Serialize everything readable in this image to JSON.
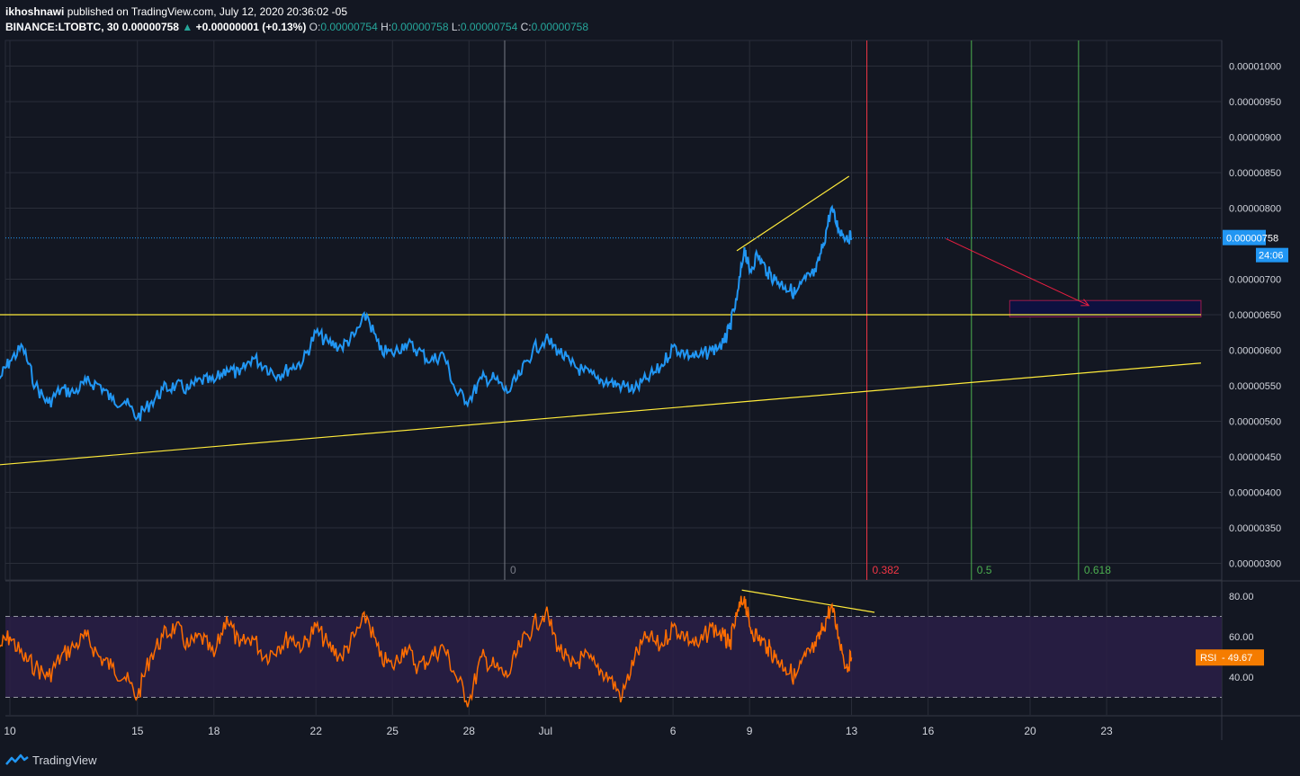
{
  "header": {
    "author": "ikhoshnawi",
    "published": "published on TradingView.com, July 12, 2020 20:36:02 -05",
    "symbol": "BINANCE:LTOBTC, 30",
    "last": "0.00000758",
    "change": "+0.00000001 (+0.13%)",
    "o_label": "O:",
    "o_value": "0.00000754",
    "h_label": "H:",
    "h_value": "0.00000758",
    "l_label": "L:",
    "l_value": "0.00000754",
    "c_label": "C:",
    "c_value": "0.00000758"
  },
  "footer": {
    "brand": "TradingView"
  },
  "colors": {
    "background": "#131722",
    "grid": "#2a2e39",
    "price_line": "#2196f3",
    "rsi_line": "#ff6d00",
    "trend_lines": "#ffeb3b",
    "fib_0": "#787b86",
    "fib_0382": "#f23645",
    "fib_05": "#4caf50",
    "fib_0618": "#4caf50",
    "rsi_band": "#2a1e46",
    "target_box": "#0d1140",
    "target_border": "#9c1a4b",
    "arrow": "#e91e41",
    "label_bg": "#2196f3",
    "rsi_label_bg": "#f57c00"
  },
  "chart_data": {
    "type": "line",
    "price_axis": {
      "ticks": [
        "0.00001000",
        "0.00000950",
        "0.00000900",
        "0.00000850",
        "0.00000800",
        "0.00000700",
        "0.00000650",
        "0.00000600",
        "0.00000550",
        "0.00000500",
        "0.00000450",
        "0.00000400",
        "0.00000350",
        "0.00000300"
      ],
      "current_label": "0.00000758",
      "countdown": "24:06"
    },
    "time_axis": {
      "ticks": [
        {
          "label": "10",
          "day": 10
        },
        {
          "label": "15",
          "day": 15
        },
        {
          "label": "18",
          "day": 18
        },
        {
          "label": "22",
          "day": 22
        },
        {
          "label": "25",
          "day": 25
        },
        {
          "label": "28",
          "day": 28
        },
        {
          "label": "Jul",
          "day": 31
        },
        {
          "label": "6",
          "day": 36
        },
        {
          "label": "9",
          "day": 39
        },
        {
          "label": "13",
          "day": 43
        },
        {
          "label": "16",
          "day": 46
        },
        {
          "label": "20",
          "day": 50
        },
        {
          "label": "23",
          "day": 53
        }
      ]
    },
    "price_series": {
      "name": "LTOBTC",
      "unit": "1e-8 BTC",
      "points": [
        [
          9.6,
          560
        ],
        [
          10.0,
          585
        ],
        [
          10.5,
          605
        ],
        [
          11.0,
          550
        ],
        [
          11.5,
          525
        ],
        [
          12.0,
          545
        ],
        [
          12.5,
          540
        ],
        [
          13.0,
          555
        ],
        [
          13.5,
          552
        ],
        [
          14.0,
          530
        ],
        [
          14.5,
          528
        ],
        [
          15.0,
          505
        ],
        [
          15.5,
          525
        ],
        [
          16.0,
          545
        ],
        [
          16.5,
          550
        ],
        [
          17.0,
          545
        ],
        [
          17.5,
          558
        ],
        [
          18.0,
          555
        ],
        [
          18.5,
          575
        ],
        [
          19.0,
          565
        ],
        [
          19.5,
          590
        ],
        [
          20.0,
          578
        ],
        [
          20.5,
          565
        ],
        [
          21.0,
          575
        ],
        [
          21.5,
          585
        ],
        [
          22.0,
          625
        ],
        [
          22.5,
          610
        ],
        [
          23.0,
          605
        ],
        [
          23.5,
          620
        ],
        [
          24.0,
          650
        ],
        [
          24.5,
          600
        ],
        [
          25.0,
          595
        ],
        [
          25.5,
          610
        ],
        [
          26.0,
          600
        ],
        [
          26.5,
          585
        ],
        [
          27.0,
          595
        ],
        [
          27.5,
          540
        ],
        [
          28.0,
          530
        ],
        [
          28.5,
          560
        ],
        [
          29.0,
          560
        ],
        [
          29.5,
          540
        ],
        [
          30.0,
          565
        ],
        [
          30.5,
          600
        ],
        [
          31.0,
          615
        ],
        [
          31.5,
          600
        ],
        [
          32.0,
          580
        ],
        [
          32.5,
          570
        ],
        [
          33.0,
          560
        ],
        [
          33.5,
          555
        ],
        [
          34.0,
          550
        ],
        [
          34.5,
          545
        ],
        [
          35.0,
          560
        ],
        [
          35.5,
          575
        ],
        [
          36.0,
          605
        ],
        [
          36.5,
          595
        ],
        [
          37.0,
          590
        ],
        [
          37.5,
          600
        ],
        [
          38.0,
          610
        ],
        [
          38.2,
          630
        ],
        [
          38.5,
          670
        ],
        [
          38.8,
          745
        ],
        [
          39.0,
          710
        ],
        [
          39.3,
          735
        ],
        [
          39.7,
          710
        ],
        [
          40.0,
          700
        ],
        [
          40.4,
          690
        ],
        [
          40.8,
          680
        ],
        [
          41.2,
          700
        ],
        [
          41.6,
          710
        ],
        [
          41.9,
          750
        ],
        [
          42.2,
          800
        ],
        [
          42.5,
          770
        ],
        [
          42.8,
          760
        ],
        [
          43.0,
          758
        ]
      ]
    },
    "rsi": {
      "label": "RSI",
      "value": "49.67",
      "axis_ticks": [
        "80.00",
        "60.00",
        "40.00"
      ],
      "upper_band": 70,
      "lower_band": 30,
      "points": [
        [
          9.6,
          55
        ],
        [
          10.0,
          60
        ],
        [
          10.5,
          50
        ],
        [
          11.0,
          45
        ],
        [
          11.5,
          40
        ],
        [
          12.0,
          50
        ],
        [
          12.5,
          55
        ],
        [
          13.0,
          60
        ],
        [
          13.5,
          50
        ],
        [
          14.0,
          45
        ],
        [
          14.5,
          40
        ],
        [
          15.0,
          30
        ],
        [
          15.5,
          50
        ],
        [
          16.0,
          60
        ],
        [
          16.5,
          65
        ],
        [
          17.0,
          55
        ],
        [
          17.5,
          60
        ],
        [
          18.0,
          50
        ],
        [
          18.5,
          70
        ],
        [
          19.0,
          55
        ],
        [
          19.5,
          60
        ],
        [
          20.0,
          50
        ],
        [
          20.5,
          55
        ],
        [
          21.0,
          60
        ],
        [
          21.5,
          55
        ],
        [
          22.0,
          65
        ],
        [
          22.5,
          55
        ],
        [
          23.0,
          50
        ],
        [
          23.5,
          60
        ],
        [
          24.0,
          70
        ],
        [
          24.5,
          50
        ],
        [
          25.0,
          45
        ],
        [
          25.5,
          55
        ],
        [
          26.0,
          45
        ],
        [
          26.5,
          50
        ],
        [
          27.0,
          55
        ],
        [
          27.5,
          40
        ],
        [
          28.0,
          28
        ],
        [
          28.5,
          50
        ],
        [
          29.0,
          45
        ],
        [
          29.5,
          40
        ],
        [
          30.0,
          55
        ],
        [
          30.5,
          65
        ],
        [
          31.0,
          72
        ],
        [
          31.5,
          55
        ],
        [
          32.0,
          45
        ],
        [
          32.5,
          50
        ],
        [
          33.0,
          45
        ],
        [
          33.5,
          40
        ],
        [
          34.0,
          30
        ],
        [
          34.5,
          50
        ],
        [
          35.0,
          60
        ],
        [
          35.5,
          55
        ],
        [
          36.0,
          65
        ],
        [
          36.5,
          60
        ],
        [
          37.0,
          55
        ],
        [
          37.5,
          65
        ],
        [
          38.0,
          60
        ],
        [
          38.2,
          55
        ],
        [
          38.5,
          70
        ],
        [
          38.8,
          80
        ],
        [
          39.0,
          65
        ],
        [
          39.3,
          60
        ],
        [
          39.7,
          55
        ],
        [
          40.0,
          50
        ],
        [
          40.4,
          45
        ],
        [
          40.8,
          40
        ],
        [
          41.2,
          50
        ],
        [
          41.6,
          55
        ],
        [
          41.9,
          65
        ],
        [
          42.2,
          75
        ],
        [
          42.5,
          60
        ],
        [
          42.8,
          45
        ],
        [
          43.0,
          49.67
        ]
      ]
    },
    "fibonacci": [
      {
        "label": "0",
        "day": 29.4
      },
      {
        "label": "0.382",
        "day": 43.6
      },
      {
        "label": "0.5",
        "day": 47.7
      },
      {
        "label": "0.618",
        "day": 51.9
      }
    ],
    "drawings": {
      "horizontal_support": [
        [
          9.0,
          650
        ],
        [
          56.7,
          650
        ]
      ],
      "ascending_trend": [
        [
          9.0,
          437
        ],
        [
          56.7,
          582
        ]
      ],
      "price_wedge": [
        [
          38.5,
          740
        ],
        [
          42.9,
          845
        ]
      ],
      "rsi_divergence": [
        [
          38.7,
          83
        ],
        [
          43.9,
          72
        ]
      ],
      "target_box": {
        "from_day": 49.2,
        "to_day": 56.7,
        "top": 670,
        "bottom": 647
      },
      "arrow": {
        "from": [
          46.7,
          757
        ],
        "to": [
          52.3,
          663
        ]
      }
    }
  }
}
